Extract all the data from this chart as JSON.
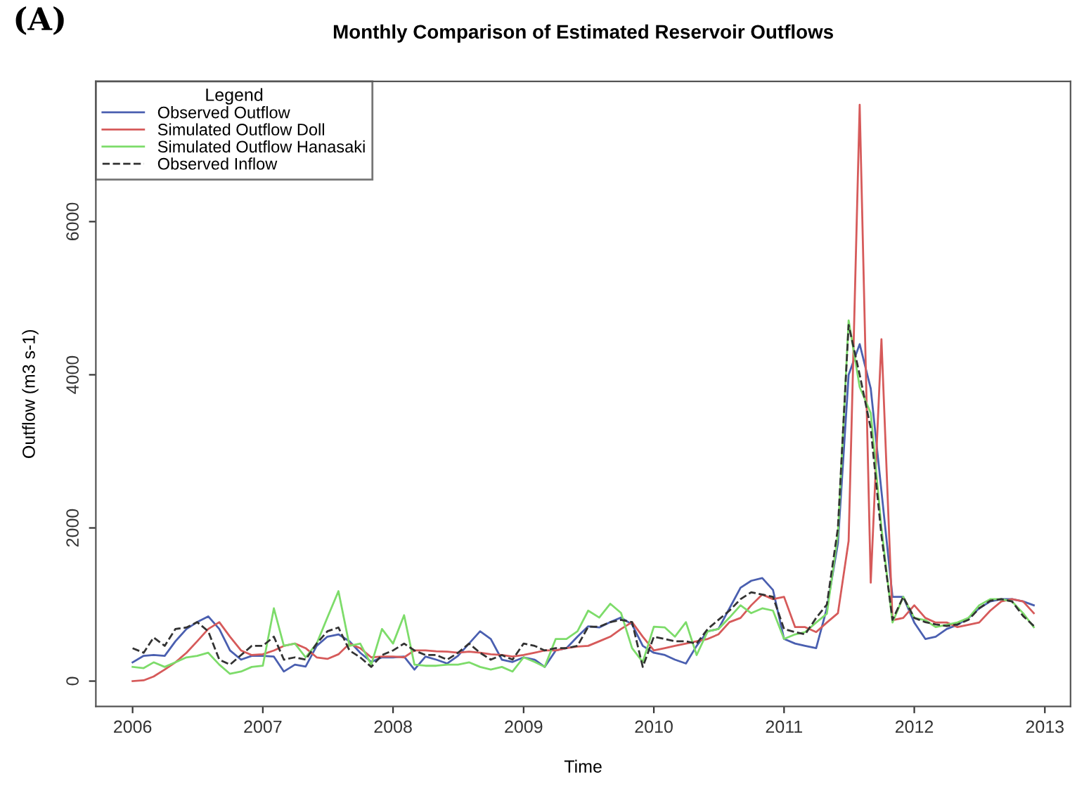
{
  "chart_data": {
    "type": "line",
    "title": "Monthly Comparison of Estimated Reservoir Outflows",
    "xlabel": "Time",
    "ylabel": "Outflow (m3 s-1)",
    "legend_title": "Legend",
    "annotations": [
      "(A)"
    ],
    "x": [
      "2006-01",
      "2006-02",
      "2006-03",
      "2006-04",
      "2006-05",
      "2006-06",
      "2006-07",
      "2006-08",
      "2006-09",
      "2006-10",
      "2006-11",
      "2006-12",
      "2007-01",
      "2007-02",
      "2007-03",
      "2007-04",
      "2007-05",
      "2007-06",
      "2007-07",
      "2007-08",
      "2007-09",
      "2007-10",
      "2007-11",
      "2007-12",
      "2008-01",
      "2008-02",
      "2008-03",
      "2008-04",
      "2008-05",
      "2008-06",
      "2008-07",
      "2008-08",
      "2008-09",
      "2008-10",
      "2008-11",
      "2008-12",
      "2009-01",
      "2009-02",
      "2009-03",
      "2009-04",
      "2009-05",
      "2009-06",
      "2009-07",
      "2009-08",
      "2009-09",
      "2009-10",
      "2009-11",
      "2009-12",
      "2010-01",
      "2010-02",
      "2010-03",
      "2010-04",
      "2010-05",
      "2010-06",
      "2010-07",
      "2010-08",
      "2010-09",
      "2010-10",
      "2010-11",
      "2010-12",
      "2011-01",
      "2011-02",
      "2011-03",
      "2011-04",
      "2011-05",
      "2011-06",
      "2011-07",
      "2011-08",
      "2011-09",
      "2011-10",
      "2011-11",
      "2011-12",
      "2012-01",
      "2012-02",
      "2012-03",
      "2012-04",
      "2012-05",
      "2012-06",
      "2012-07",
      "2012-08",
      "2012-09",
      "2012-10",
      "2012-11",
      "2012-12"
    ],
    "series": [
      {
        "name": "Observed Outflow",
        "color": "#4a5fb0",
        "line_style": "solid",
        "values": [
          245,
          330,
          340,
          330,
          520,
          680,
          770,
          845,
          680,
          400,
          280,
          330,
          330,
          320,
          125,
          215,
          190,
          460,
          580,
          610,
          520,
          370,
          250,
          310,
          310,
          320,
          150,
          320,
          280,
          230,
          330,
          490,
          650,
          550,
          280,
          250,
          310,
          280,
          185,
          400,
          430,
          580,
          715,
          700,
          770,
          830,
          740,
          460,
          370,
          340,
          280,
          230,
          460,
          650,
          680,
          950,
          1220,
          1310,
          1345,
          1190,
          550,
          490,
          460,
          430,
          950,
          1800,
          4000,
          4400,
          3820,
          2480,
          1100,
          1100,
          765,
          550,
          580,
          680,
          735,
          825,
          950,
          1040,
          1070,
          1070,
          1040,
          990
        ]
      },
      {
        "name": "Simulated Outflow Doll",
        "color": "#d65a5a",
        "line_style": "solid",
        "values": [
          0,
          10,
          60,
          150,
          245,
          370,
          520,
          680,
          770,
          580,
          400,
          340,
          350,
          400,
          460,
          490,
          430,
          310,
          290,
          350,
          490,
          430,
          310,
          320,
          320,
          310,
          400,
          400,
          390,
          385,
          370,
          385,
          370,
          350,
          340,
          320,
          340,
          370,
          400,
          400,
          430,
          450,
          460,
          520,
          580,
          680,
          770,
          580,
          400,
          430,
          460,
          490,
          520,
          550,
          610,
          770,
          825,
          990,
          1130,
          1070,
          1100,
          705,
          705,
          640,
          765,
          887,
          1830,
          7525,
          1285,
          4465,
          795,
          825,
          990,
          825,
          765,
          765,
          705,
          735,
          765,
          920,
          1040,
          1070,
          1040,
          887
        ]
      },
      {
        "name": "Simulated Outflow Hanasaki",
        "color": "#7ddc6a",
        "line_style": "solid",
        "values": [
          185,
          170,
          245,
          185,
          245,
          310,
          330,
          370,
          215,
          95,
          125,
          185,
          200,
          950,
          460,
          490,
          310,
          490,
          830,
          1175,
          460,
          490,
          215,
          680,
          490,
          860,
          215,
          200,
          200,
          215,
          215,
          245,
          185,
          150,
          185,
          125,
          310,
          250,
          185,
          550,
          550,
          650,
          920,
          830,
          1010,
          890,
          430,
          250,
          710,
          700,
          580,
          770,
          340,
          650,
          680,
          830,
          990,
          887,
          950,
          920,
          550,
          610,
          640,
          765,
          880,
          1915,
          4710,
          3840,
          3500,
          2000,
          765,
          1100,
          825,
          795,
          705,
          735,
          765,
          825,
          990,
          1070,
          1070,
          1040,
          887,
          705
        ]
      },
      {
        "name": "Observed Inflow",
        "color": "#333333",
        "line_style": "dashed",
        "values": [
          430,
          370,
          570,
          460,
          680,
          700,
          770,
          650,
          280,
          215,
          340,
          460,
          460,
          580,
          280,
          310,
          280,
          490,
          650,
          700,
          400,
          310,
          185,
          340,
          400,
          490,
          400,
          340,
          340,
          280,
          370,
          490,
          370,
          280,
          340,
          280,
          490,
          460,
          400,
          430,
          430,
          460,
          710,
          710,
          770,
          800,
          770,
          185,
          580,
          550,
          520,
          520,
          490,
          680,
          800,
          920,
          1070,
          1160,
          1130,
          1100,
          680,
          640,
          610,
          825,
          1000,
          2000,
          4650,
          4000,
          3300,
          1900,
          800,
          1100,
          825,
          770,
          740,
          720,
          740,
          800,
          950,
          1050,
          1070,
          1040,
          850,
          720
        ]
      }
    ],
    "xlim": [
      "2005-09-20",
      "2013-03-14"
    ],
    "xticks": [
      "2006",
      "2007",
      "2008",
      "2009",
      "2010",
      "2011",
      "2012",
      "2013"
    ],
    "ylim": [
      -330,
      7830
    ],
    "yticks": [
      0,
      2000,
      4000,
      6000
    ],
    "grid": false,
    "legend": "top left",
    "marker": "none"
  }
}
